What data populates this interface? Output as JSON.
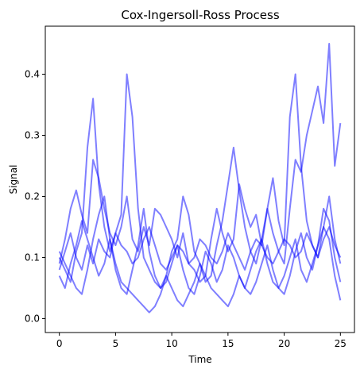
{
  "chart_data": {
    "type": "line",
    "title": "Cox-Ingersoll-Ross Process",
    "xlabel": "Time",
    "ylabel": "Signal",
    "xlim": [
      -1.25,
      26.25
    ],
    "ylim": [
      -0.0228,
      0.4786
    ],
    "x_ticks": [
      0,
      5,
      10,
      15,
      20,
      25
    ],
    "x_tick_labels": [
      "0",
      "5",
      "10",
      "15",
      "20",
      "25"
    ],
    "y_ticks": [
      0.0,
      0.1,
      0.2,
      0.3,
      0.4
    ],
    "y_tick_labels": [
      "0.0",
      "0.1",
      "0.2",
      "0.3",
      "0.4"
    ],
    "grid": false,
    "legend": "none",
    "line_color": "#0000ff",
    "line_opacity": 0.5,
    "x_step": 0.5,
    "series": [
      {
        "values": [
          0.09,
          0.13,
          0.18,
          0.21,
          0.17,
          0.14,
          0.26,
          0.23,
          0.18,
          0.14,
          0.12,
          0.15,
          0.2,
          0.13,
          0.11,
          0.15,
          0.12,
          0.18,
          0.17,
          0.15,
          0.13,
          0.1,
          0.14,
          0.09,
          0.08,
          0.06,
          0.07,
          0.13,
          0.18,
          0.14,
          0.11,
          0.13,
          0.22,
          0.18,
          0.15,
          0.17,
          0.12,
          0.18,
          0.14,
          0.11,
          0.09,
          0.18,
          0.26,
          0.24,
          0.3,
          0.34,
          0.38,
          0.32,
          0.45,
          0.25,
          0.32
        ]
      },
      {
        "values": [
          0.1,
          0.08,
          0.06,
          0.11,
          0.14,
          0.28,
          0.36,
          0.22,
          0.15,
          0.11,
          0.14,
          0.17,
          0.4,
          0.33,
          0.18,
          0.1,
          0.08,
          0.06,
          0.05,
          0.07,
          0.11,
          0.13,
          0.2,
          0.17,
          0.11,
          0.09,
          0.06,
          0.07,
          0.12,
          0.16,
          0.22,
          0.28,
          0.21,
          0.15,
          0.11,
          0.09,
          0.13,
          0.18,
          0.23,
          0.16,
          0.12,
          0.33,
          0.4,
          0.25,
          0.16,
          0.12,
          0.1,
          0.15,
          0.2,
          0.13,
          0.09
        ]
      },
      {
        "values": [
          0.07,
          0.05,
          0.09,
          0.12,
          0.16,
          0.13,
          0.1,
          0.07,
          0.09,
          0.13,
          0.08,
          0.05,
          0.04,
          0.08,
          0.12,
          0.18,
          0.11,
          0.07,
          0.05,
          0.06,
          0.09,
          0.12,
          0.08,
          0.05,
          0.04,
          0.07,
          0.11,
          0.09,
          0.06,
          0.08,
          0.12,
          0.1,
          0.07,
          0.05,
          0.08,
          0.11,
          0.13,
          0.09,
          0.06,
          0.05,
          0.07,
          0.1,
          0.13,
          0.08,
          0.06,
          0.09,
          0.12,
          0.18,
          0.16,
          0.1,
          0.06
        ]
      },
      {
        "values": [
          0.11,
          0.09,
          0.07,
          0.05,
          0.04,
          0.08,
          0.13,
          0.17,
          0.2,
          0.13,
          0.09,
          0.06,
          0.05,
          0.04,
          0.03,
          0.02,
          0.01,
          0.02,
          0.04,
          0.07,
          0.05,
          0.03,
          0.02,
          0.04,
          0.06,
          0.09,
          0.07,
          0.05,
          0.04,
          0.03,
          0.02,
          0.04,
          0.07,
          0.05,
          0.04,
          0.06,
          0.09,
          0.12,
          0.08,
          0.05,
          0.04,
          0.07,
          0.11,
          0.14,
          0.1,
          0.08,
          0.12,
          0.15,
          0.13,
          0.07,
          0.03
        ]
      },
      {
        "values": [
          0.08,
          0.11,
          0.14,
          0.1,
          0.08,
          0.12,
          0.09,
          0.13,
          0.11,
          0.1,
          0.14,
          0.12,
          0.11,
          0.09,
          0.1,
          0.13,
          0.15,
          0.12,
          0.09,
          0.08,
          0.1,
          0.12,
          0.11,
          0.09,
          0.1,
          0.13,
          0.12,
          0.1,
          0.09,
          0.11,
          0.14,
          0.12,
          0.1,
          0.08,
          0.11,
          0.13,
          0.12,
          0.1,
          0.09,
          0.11,
          0.13,
          0.12,
          0.1,
          0.11,
          0.14,
          0.12,
          0.1,
          0.13,
          0.15,
          0.12,
          0.1
        ]
      }
    ]
  }
}
